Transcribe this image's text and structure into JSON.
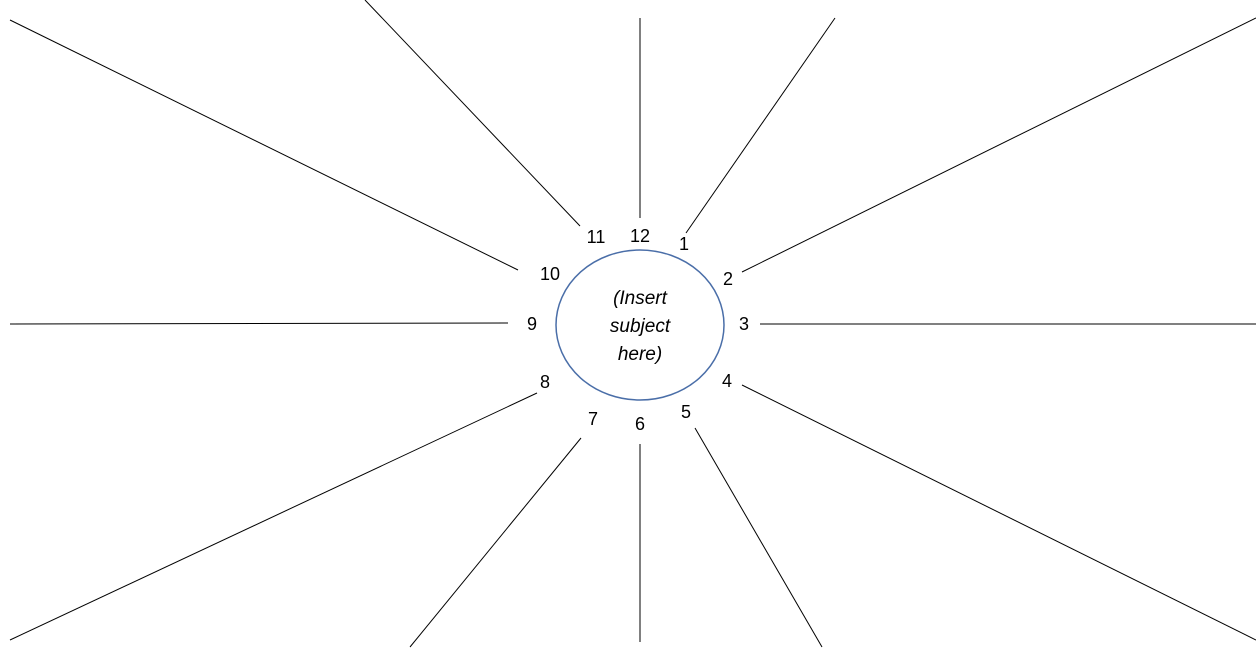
{
  "center": {
    "lines": [
      "(Insert",
      "subject",
      "here)"
    ]
  },
  "spokes": [
    "1",
    "2",
    "3",
    "4",
    "5",
    "6",
    "7",
    "8",
    "9",
    "10",
    "11",
    "12"
  ]
}
